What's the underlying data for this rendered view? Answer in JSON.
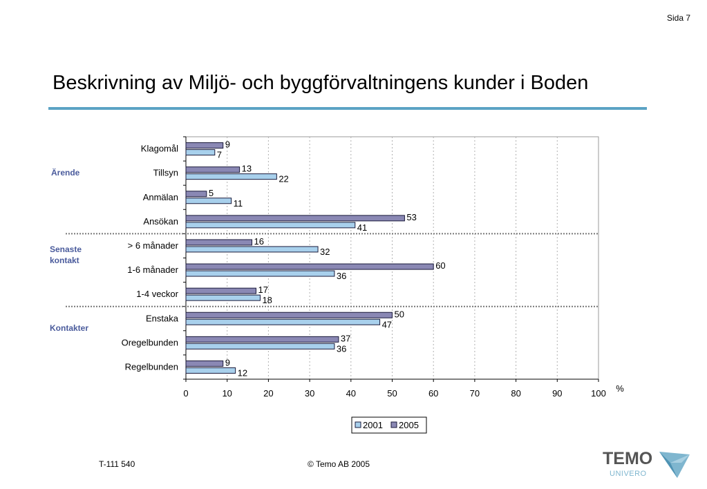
{
  "page": {
    "page_number": "Sida 7",
    "title": "Beskrivning av Miljö- och byggförvaltningens kunder i Boden"
  },
  "groups": [
    "Ärende",
    "Senaste kontakt",
    "Kontakter"
  ],
  "footer": {
    "code": "T-111 540",
    "copyright": "©  Temo AB 2005"
  },
  "logo": {
    "name": "TEMO",
    "sub": "UNIVERO"
  },
  "chart_data": {
    "type": "bar",
    "orientation": "horizontal",
    "categories": [
      "Klagomål",
      "Tillsyn",
      "Anmälan",
      "Ansökan",
      "> 6 månader",
      "1-6 månader",
      "1-4 veckor",
      "Enstaka",
      "Oregelbunden",
      "Regelbunden"
    ],
    "series": [
      {
        "name": "2005",
        "values": [
          9,
          13,
          5,
          53,
          16,
          60,
          17,
          50,
          37,
          9
        ],
        "color": "#8a88b4"
      },
      {
        "name": "2001",
        "values": [
          7,
          22,
          11,
          41,
          32,
          36,
          18,
          47,
          36,
          12
        ],
        "color": "#a8d0ec"
      }
    ],
    "xlim": [
      0,
      100
    ],
    "xticks": [
      0,
      10,
      20,
      30,
      40,
      50,
      60,
      70,
      80,
      90,
      100
    ],
    "xlabel": "%",
    "legend": {
      "placement": "bottom",
      "entries": [
        "2001",
        "2005"
      ]
    },
    "grid": true
  }
}
